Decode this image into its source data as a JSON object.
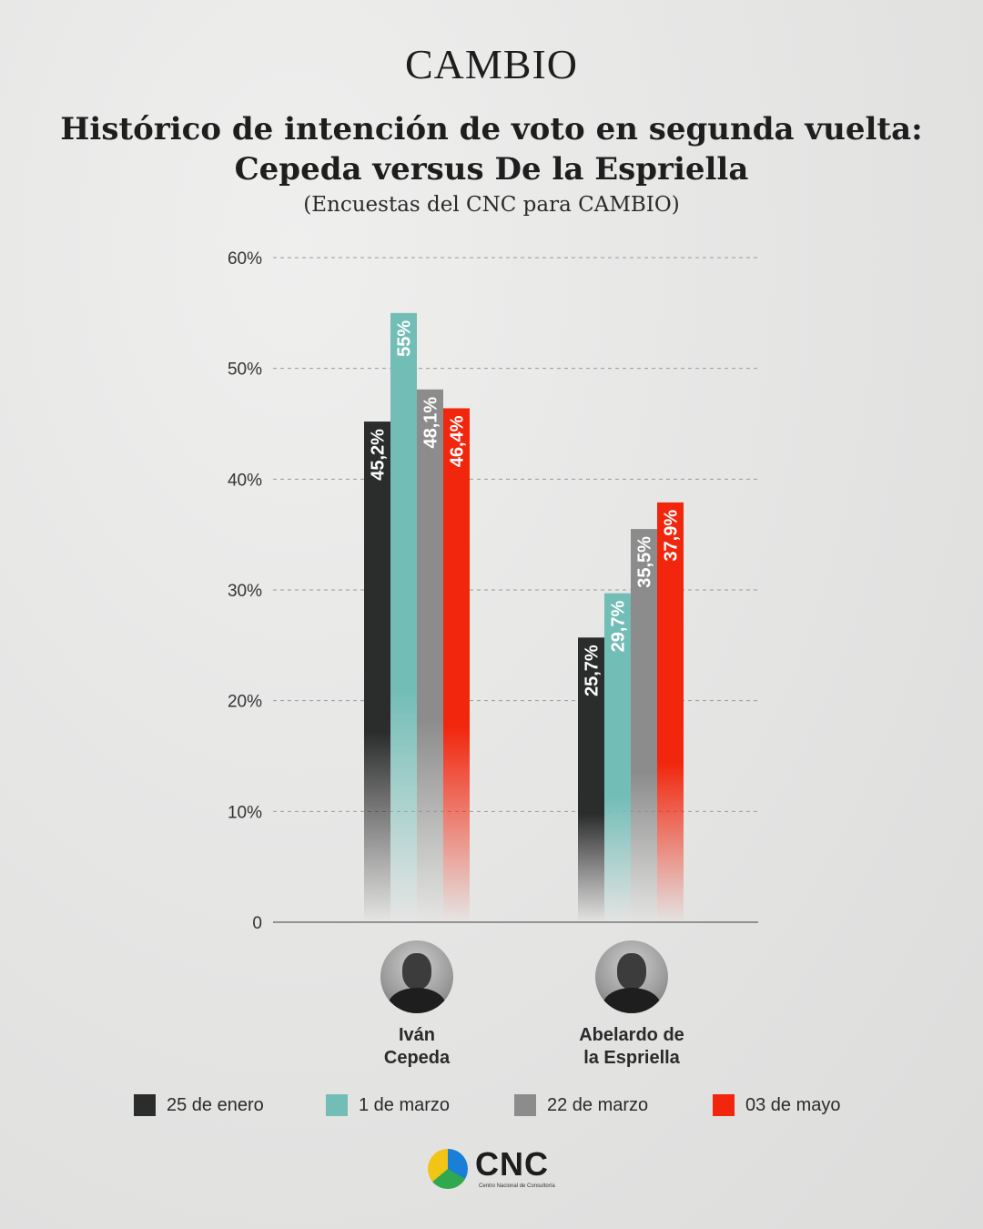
{
  "brand": "CAMBIO",
  "header": {
    "title_line1": "Histórico de intención de voto en segunda vuelta:",
    "title_line2": "Cepeda versus De la Espriella",
    "subtitle": "(Encuestas del CNC para CAMBIO)"
  },
  "chart_data": {
    "type": "bar",
    "title": "Histórico de intención de voto en segunda vuelta: Cepeda versus De la Espriella",
    "subtitle": "(Encuestas del CNC para CAMBIO)",
    "categories": [
      "Iván Cepeda",
      "Abelardo de la Espriella"
    ],
    "series": [
      {
        "name": "25 de enero",
        "color": "#2b2d2c",
        "values": [
          45.2,
          25.7
        ],
        "labels": [
          "45,2%",
          "25,7%"
        ]
      },
      {
        "name": "1 de marzo",
        "color": "#73bdb7",
        "values": [
          55,
          29.7
        ],
        "labels": [
          "55%",
          "29,7%"
        ]
      },
      {
        "name": "22 de marzo",
        "color": "#8c8c8c",
        "values": [
          48.1,
          35.5
        ],
        "labels": [
          "48,1%",
          "35,5%"
        ]
      },
      {
        "name": "03 de mayo",
        "color": "#f2260d",
        "values": [
          46.4,
          37.9
        ],
        "labels": [
          "46,4%",
          "37,9%"
        ]
      }
    ],
    "ylim": [
      0,
      60
    ],
    "yticks": [
      {
        "value": 0,
        "label": "0"
      },
      {
        "value": 10,
        "label": "10%"
      },
      {
        "value": 20,
        "label": "20%"
      },
      {
        "value": 30,
        "label": "30%"
      },
      {
        "value": 40,
        "label": "40%"
      },
      {
        "value": 50,
        "label": "50%"
      },
      {
        "value": 60,
        "label": "60%"
      }
    ],
    "grid": true,
    "legend": "bottom"
  },
  "candidates": [
    {
      "line1": "Iván",
      "line2": "Cepeda"
    },
    {
      "line1": "Abelardo de",
      "line2": "la Espriella"
    }
  ],
  "legend": [
    {
      "label": "25 de enero",
      "color": "#2b2d2c"
    },
    {
      "label": "1 de marzo",
      "color": "#73bdb7"
    },
    {
      "label": "22 de marzo",
      "color": "#8c8c8c"
    },
    {
      "label": "03 de mayo",
      "color": "#f2260d"
    }
  ],
  "footer_logo": {
    "name": "CNC",
    "tagline": "Centro Nacional de Consultoría"
  }
}
